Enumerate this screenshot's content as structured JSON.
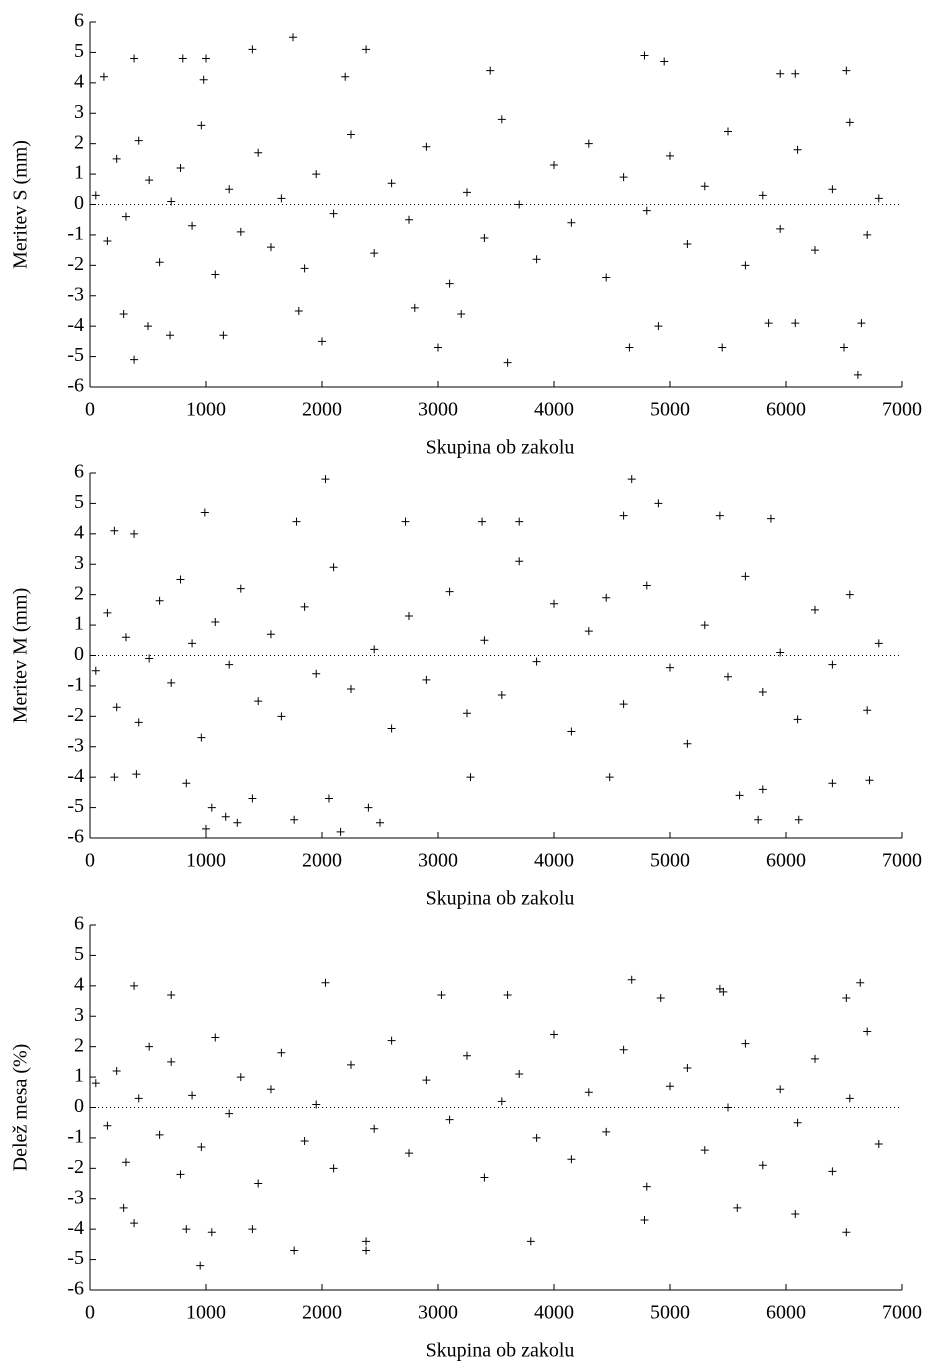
{
  "chart_data": [
    {
      "type": "scatter",
      "xlabel": "Skupina ob zakolu",
      "ylabel": "Meritev S (mm)",
      "color": "#000000",
      "marker": "+",
      "reference_line": 0,
      "xlim": [
        0,
        7000
      ],
      "xticks": [
        0,
        1000,
        2000,
        3000,
        4000,
        5000,
        6000,
        7000
      ],
      "ylim": [
        -6,
        6
      ],
      "yticks": [
        -6,
        -5,
        -4,
        -3,
        -2,
        -1,
        0,
        1,
        2,
        3,
        4,
        5,
        6
      ],
      "x": [
        1750,
        1400,
        2380,
        380,
        800,
        1000,
        4780,
        4950,
        6520,
        3450,
        5950,
        6080,
        120,
        980,
        2200,
        380,
        1150,
        500,
        690,
        2000,
        3000,
        3600,
        4650,
        5450,
        5850,
        6080,
        6500,
        6620,
        6650,
        4900,
        3200,
        290,
        1800,
        2800,
        50,
        150,
        230,
        310,
        420,
        510,
        600,
        700,
        780,
        880,
        960,
        1080,
        1200,
        1300,
        1450,
        1560,
        1650,
        1850,
        1950,
        2100,
        2250,
        2450,
        2600,
        2750,
        2900,
        3100,
        3250,
        3400,
        3550,
        3700,
        3850,
        4000,
        4150,
        4300,
        4450,
        4600,
        4800,
        5000,
        5150,
        5300,
        5500,
        5650,
        5800,
        5950,
        6100,
        6250,
        6400,
        6550,
        6700,
        6800
      ],
      "values": [
        5.5,
        5.1,
        5.1,
        4.8,
        4.8,
        4.8,
        4.9,
        4.7,
        4.4,
        4.4,
        4.3,
        4.3,
        4.2,
        4.1,
        4.2,
        -5.1,
        -4.3,
        -4.0,
        -4.3,
        -4.5,
        -4.7,
        -5.2,
        -4.7,
        -4.7,
        -3.9,
        -3.9,
        -4.7,
        -5.6,
        -3.9,
        -4.0,
        -3.6,
        -3.6,
        -3.5,
        -3.4,
        0.3,
        -1.2,
        1.5,
        -0.4,
        2.1,
        0.8,
        -1.9,
        0.1,
        1.2,
        -0.7,
        2.6,
        -2.3,
        0.5,
        -0.9,
        1.7,
        -1.4,
        0.2,
        -2.1,
        1.0,
        -0.3,
        2.3,
        -1.6,
        0.7,
        -0.5,
        1.9,
        -2.6,
        0.4,
        -1.1,
        2.8,
        0.0,
        -1.8,
        1.3,
        -0.6,
        2.0,
        -2.4,
        0.9,
        -0.2,
        1.6,
        -1.3,
        0.6,
        2.4,
        -2.0,
        0.3,
        -0.8,
        1.8,
        -1.5,
        0.5,
        2.7,
        -1.0,
        0.2
      ]
    },
    {
      "type": "scatter",
      "xlabel": "Skupina ob zakolu",
      "ylabel": "Meritev M (mm)",
      "color": "#000000",
      "marker": "+",
      "reference_line": 0,
      "xlim": [
        0,
        7000
      ],
      "xticks": [
        0,
        1000,
        2000,
        3000,
        4000,
        5000,
        6000,
        7000
      ],
      "ylim": [
        -6,
        6
      ],
      "yticks": [
        -6,
        -5,
        -4,
        -3,
        -2,
        -1,
        0,
        1,
        2,
        3,
        4,
        5,
        6
      ],
      "x": [
        2030,
        4670,
        4900,
        990,
        1780,
        2720,
        3380,
        3700,
        5430,
        5870,
        4600,
        210,
        380,
        1050,
        1000,
        1270,
        1760,
        2160,
        2500,
        2400,
        1170,
        2060,
        5760,
        6110,
        5600,
        5800,
        210,
        400,
        6400,
        6720,
        3280,
        4480,
        830,
        1400,
        50,
        150,
        230,
        310,
        420,
        510,
        600,
        700,
        780,
        880,
        960,
        1080,
        1200,
        1300,
        1450,
        1560,
        1650,
        1850,
        1950,
        2100,
        2250,
        2450,
        2600,
        2750,
        2900,
        3100,
        3250,
        3400,
        3550,
        3700,
        3850,
        4000,
        4150,
        4300,
        4450,
        4600,
        4800,
        5000,
        5150,
        5300,
        5500,
        5650,
        5800,
        5950,
        6100,
        6250,
        6400,
        6550,
        6700,
        6800
      ],
      "values": [
        5.8,
        5.8,
        5.0,
        4.7,
        4.4,
        4.4,
        4.4,
        4.4,
        4.6,
        4.5,
        4.6,
        4.1,
        4.0,
        -5.0,
        -5.7,
        -5.5,
        -5.4,
        -5.8,
        -5.5,
        -5.0,
        -5.3,
        -4.7,
        -5.4,
        -5.4,
        -4.6,
        -4.4,
        -4.0,
        -3.9,
        -4.2,
        -4.1,
        -4.0,
        -4.0,
        -4.2,
        -4.7,
        -0.5,
        1.4,
        -1.7,
        0.6,
        -2.2,
        -0.1,
        1.8,
        -0.9,
        2.5,
        0.4,
        -2.7,
        1.1,
        -0.3,
        2.2,
        -1.5,
        0.7,
        -2.0,
        1.6,
        -0.6,
        2.9,
        -1.1,
        0.2,
        -2.4,
        1.3,
        -0.8,
        2.1,
        -1.9,
        0.5,
        -1.3,
        3.1,
        -0.2,
        1.7,
        -2.5,
        0.8,
        1.9,
        -1.6,
        2.3,
        -0.4,
        -2.9,
        1.0,
        -0.7,
        2.6,
        -1.2,
        0.1,
        -2.1,
        1.5,
        -0.3,
        2.0,
        -1.8,
        0.4
      ]
    },
    {
      "type": "scatter",
      "xlabel": "Skupina ob zakolu",
      "ylabel": "Delež mesa (%)",
      "color": "#000000",
      "marker": "+",
      "reference_line": 0,
      "xlim": [
        0,
        7000
      ],
      "xticks": [
        0,
        1000,
        2000,
        3000,
        4000,
        5000,
        6000,
        7000
      ],
      "ylim": [
        -6,
        6
      ],
      "yticks": [
        -6,
        -5,
        -4,
        -3,
        -2,
        -1,
        0,
        1,
        2,
        3,
        4,
        5,
        6
      ],
      "x": [
        4670,
        2030,
        6640,
        380,
        5430,
        5460,
        3030,
        3600,
        700,
        6520,
        4920,
        950,
        1760,
        2380,
        2380,
        3800,
        6520,
        1050,
        1400,
        830,
        380,
        4780,
        6080,
        5580,
        290,
        50,
        150,
        230,
        310,
        420,
        510,
        600,
        700,
        780,
        880,
        960,
        1080,
        1200,
        1300,
        1450,
        1560,
        1650,
        1850,
        1950,
        2100,
        2250,
        2450,
        2600,
        2750,
        2900,
        3100,
        3250,
        3400,
        3550,
        3700,
        3850,
        4000,
        4150,
        4300,
        4450,
        4600,
        4800,
        5000,
        5150,
        5300,
        5500,
        5650,
        5800,
        5950,
        6100,
        6250,
        6400,
        6550,
        6700,
        6800
      ],
      "values": [
        4.2,
        4.1,
        4.1,
        4.0,
        3.9,
        3.8,
        3.7,
        3.7,
        3.7,
        3.6,
        3.6,
        -5.2,
        -4.7,
        -4.7,
        -4.4,
        -4.4,
        -4.1,
        -4.1,
        -4.0,
        -4.0,
        -3.8,
        -3.7,
        -3.5,
        -3.3,
        -3.3,
        0.8,
        -0.6,
        1.2,
        -1.8,
        0.3,
        2.0,
        -0.9,
        1.5,
        -2.2,
        0.4,
        -1.3,
        2.3,
        -0.2,
        1.0,
        -2.5,
        0.6,
        1.8,
        -1.1,
        0.1,
        -2.0,
        1.4,
        -0.7,
        2.2,
        -1.5,
        0.9,
        -0.4,
        1.7,
        -2.3,
        0.2,
        1.1,
        -1.0,
        2.4,
        -1.7,
        0.5,
        -0.8,
        1.9,
        -2.6,
        0.7,
        1.3,
        -1.4,
        0.0,
        2.1,
        -1.9,
        0.6,
        -0.5,
        1.6,
        -2.1,
        0.3,
        2.5,
        -1.2
      ]
    }
  ]
}
